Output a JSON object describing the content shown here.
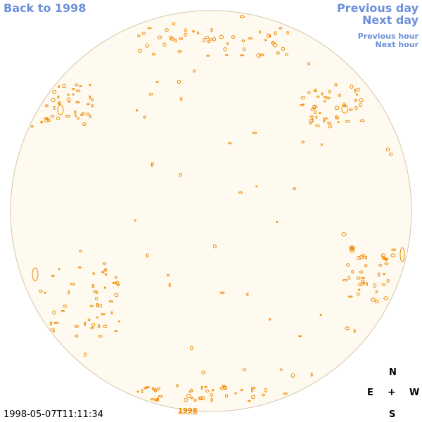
{
  "nav": {
    "back_label": "Back to 1998",
    "prev_day_label": "Previous day",
    "next_day_label": "Next day",
    "prev_hour_label": "Previous hour",
    "next_hour_label": "Next hour"
  },
  "timestamp": "1998-05-07T11:11:34",
  "year_label": "1998",
  "compass": {
    "north": "N",
    "east": "E",
    "center": "+",
    "west": "W",
    "south": "S"
  },
  "colors": {
    "link": "#6b8fd8",
    "disk_fill": "#fffaf0",
    "disk_outline": "#d4c7a8",
    "contour": "#ee8800",
    "year_label": "#ee8800"
  }
}
